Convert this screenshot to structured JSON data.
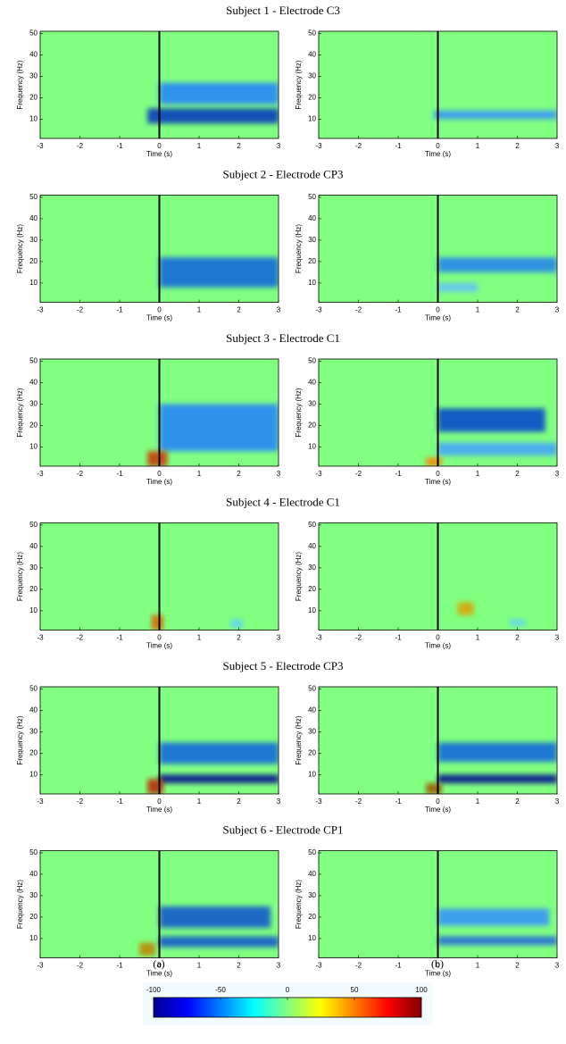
{
  "panels": {
    "x_label": "Time (s)",
    "y_label": "Frequency (Hz)",
    "xlim": [
      -3,
      3
    ],
    "xticks": [
      -3,
      -2,
      -1,
      0,
      1,
      2,
      3
    ],
    "ylim": [
      1,
      51
    ],
    "yticks": [
      10,
      20,
      30,
      40,
      50
    ]
  },
  "rows": [
    {
      "title": "Subject 1 - Electrode C3"
    },
    {
      "title": "Subject 2 - Electrode CP3"
    },
    {
      "title": "Subject 3 - Electrode C1"
    },
    {
      "title": "Subject 4 - Electrode C1"
    },
    {
      "title": "Subject 5 - Electrode CP3"
    },
    {
      "title": "Subject 6 - Electrode CP1"
    }
  ],
  "columns": [
    "(a)",
    "(b)"
  ],
  "colorbar": {
    "lim": [
      -100,
      100
    ],
    "ticks": [
      -100,
      -50,
      0,
      50,
      100
    ]
  }
}
